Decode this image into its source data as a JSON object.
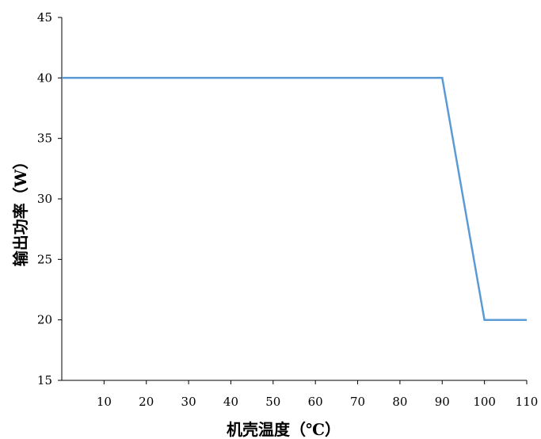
{
  "chart_data": {
    "type": "line",
    "title": "",
    "xlabel": "机壳温度（℃）",
    "ylabel": "输出功率（W）",
    "x_ticks": [
      10,
      20,
      30,
      40,
      50,
      60,
      70,
      80,
      90,
      100,
      110
    ],
    "y_ticks": [
      15,
      20,
      25,
      30,
      35,
      40,
      45
    ],
    "xlim": [
      0,
      110
    ],
    "ylim": [
      15,
      45
    ],
    "grid": false,
    "series": [
      {
        "x": [
          0,
          10,
          20,
          30,
          40,
          50,
          60,
          70,
          80,
          90,
          100,
          110
        ],
        "y": [
          40,
          40,
          40,
          40,
          40,
          40,
          40,
          40,
          40,
          40,
          20,
          20
        ],
        "color": "#5b9bd5"
      }
    ]
  }
}
